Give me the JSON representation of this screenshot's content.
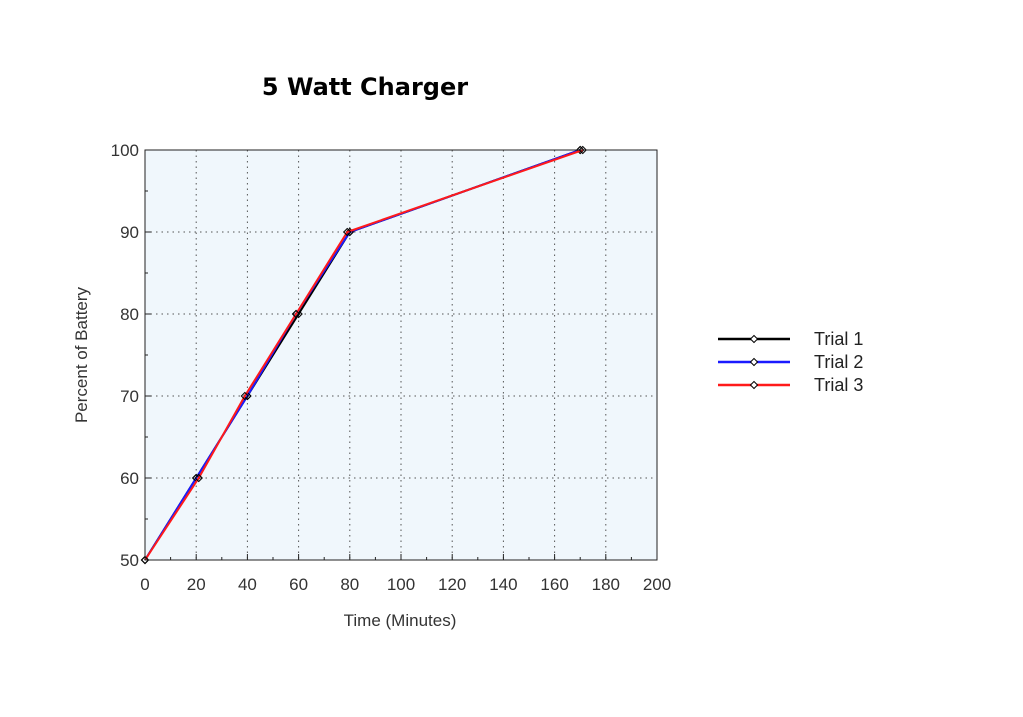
{
  "chart_data": {
    "type": "line",
    "title": "5 Watt Charger",
    "xlabel": "Time (Minutes)",
    "ylabel": "Percent of Battery",
    "xlim": [
      0,
      200
    ],
    "ylim": [
      50,
      100
    ],
    "xticks": [
      0,
      20,
      40,
      60,
      80,
      100,
      120,
      140,
      160,
      180,
      200
    ],
    "yticks": [
      50,
      60,
      70,
      80,
      90,
      100
    ],
    "grid": true,
    "legend_position": "right",
    "plot_background": "#f0f7fc",
    "series": [
      {
        "name": "Trial 1",
        "color": "#000000",
        "x": [
          0,
          20,
          40,
          60,
          80,
          170
        ],
        "y": [
          50,
          60,
          70,
          80,
          90,
          100
        ]
      },
      {
        "name": "Trial 2",
        "color": "#1a1aff",
        "x": [
          0,
          20,
          40,
          59,
          80,
          170
        ],
        "y": [
          50,
          60,
          70,
          80,
          90,
          100
        ]
      },
      {
        "name": "Trial 3",
        "color": "#ff1a1a",
        "x": [
          0,
          21,
          39,
          59,
          79,
          171
        ],
        "y": [
          50,
          60,
          70,
          80,
          90,
          100
        ]
      }
    ]
  }
}
